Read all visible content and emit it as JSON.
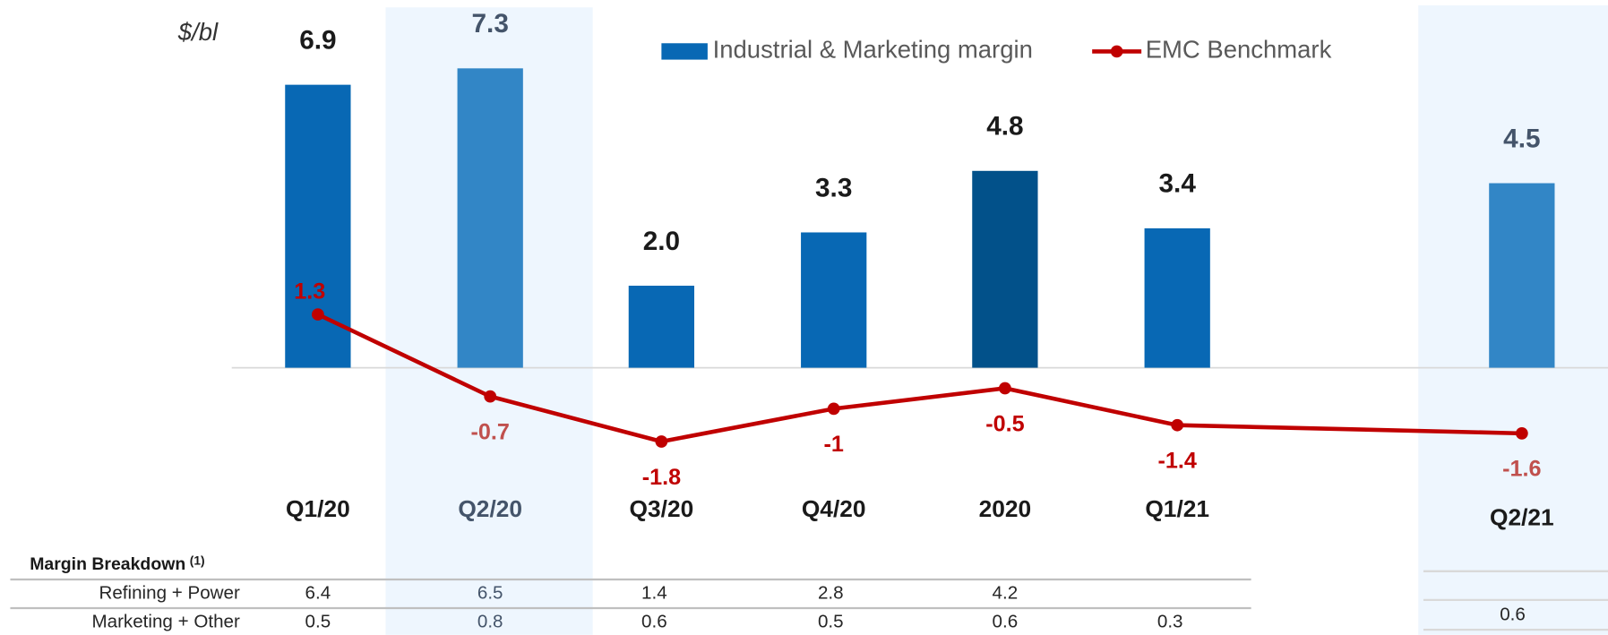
{
  "chart_data": {
    "type": "bar_line",
    "y_label": "$/bl",
    "categories": [
      "Q1/20",
      "Q2/20",
      "Q3/20",
      "Q4/20",
      "2020",
      "Q1/21",
      "Q2/21"
    ],
    "category_label_colors": [
      "#1a1a1a",
      "#44546a",
      "#1a1a1a",
      "#1a1a1a",
      "#1a1a1a",
      "#1a1a1a",
      "#1a1a1a"
    ],
    "series": [
      {
        "name": "Industrial & Marketing margin",
        "color": "#0868b4",
        "bar_colors": [
          "#0868b4",
          "#3286c6",
          "#0868b4",
          "#0868b4",
          "#02518a",
          "#0868b4",
          "#3286c6"
        ],
        "label_colors": [
          "#1a1a1a",
          "#44546a",
          "#1a1a1a",
          "#1a1a1a",
          "#1a1a1a",
          "#1a1a1a",
          "#44546a"
        ],
        "values": [
          6.9,
          7.3,
          2.0,
          3.3,
          4.8,
          3.4,
          4.5
        ],
        "value_labels": [
          "6.9",
          "7.3",
          "2.0",
          "3.3",
          "4.8",
          "3.4",
          "4.5"
        ]
      },
      {
        "name": "EMC Benchmark",
        "type": "line",
        "color": "#c00000",
        "label_colors": [
          "#c00000",
          "#c0504d",
          "#c00000",
          "#c00000",
          "#c00000",
          "#c00000",
          "#c0504d"
        ],
        "values": [
          1.3,
          -0.7,
          -1.8,
          -1.0,
          -0.5,
          -1.4,
          -1.6
        ]
      }
    ]
  },
  "table": {
    "title": "Margin Breakdown",
    "title_note": "(1)",
    "rows": [
      {
        "label": "Refining + Power",
        "values": [
          6.4,
          6.5,
          1.4,
          2.8,
          4.2,
          null,
          null
        ]
      },
      {
        "label": "Marketing + Other",
        "values": [
          0.5,
          0.8,
          0.6,
          0.5,
          0.6,
          0.3,
          0.6
        ]
      }
    ]
  }
}
